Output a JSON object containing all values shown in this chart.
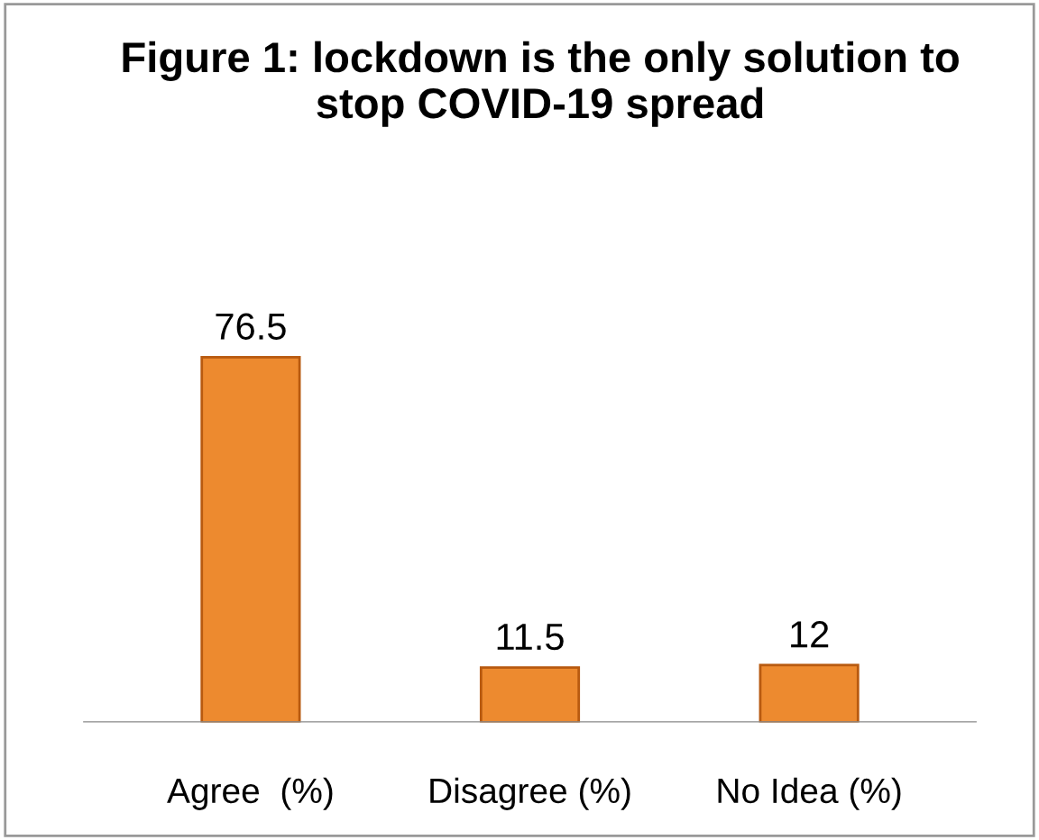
{
  "chart_data": {
    "type": "bar",
    "title": "Figure 1: lockdown is the only solution to\nstop COVID-19 spread",
    "categories": [
      "Agree  (%)",
      "Disagree (%)",
      "No Idea (%)"
    ],
    "values": [
      76.5,
      11.5,
      12
    ],
    "color": "#ed8a2f",
    "data_labels": true,
    "grid": false,
    "legend": false
  }
}
